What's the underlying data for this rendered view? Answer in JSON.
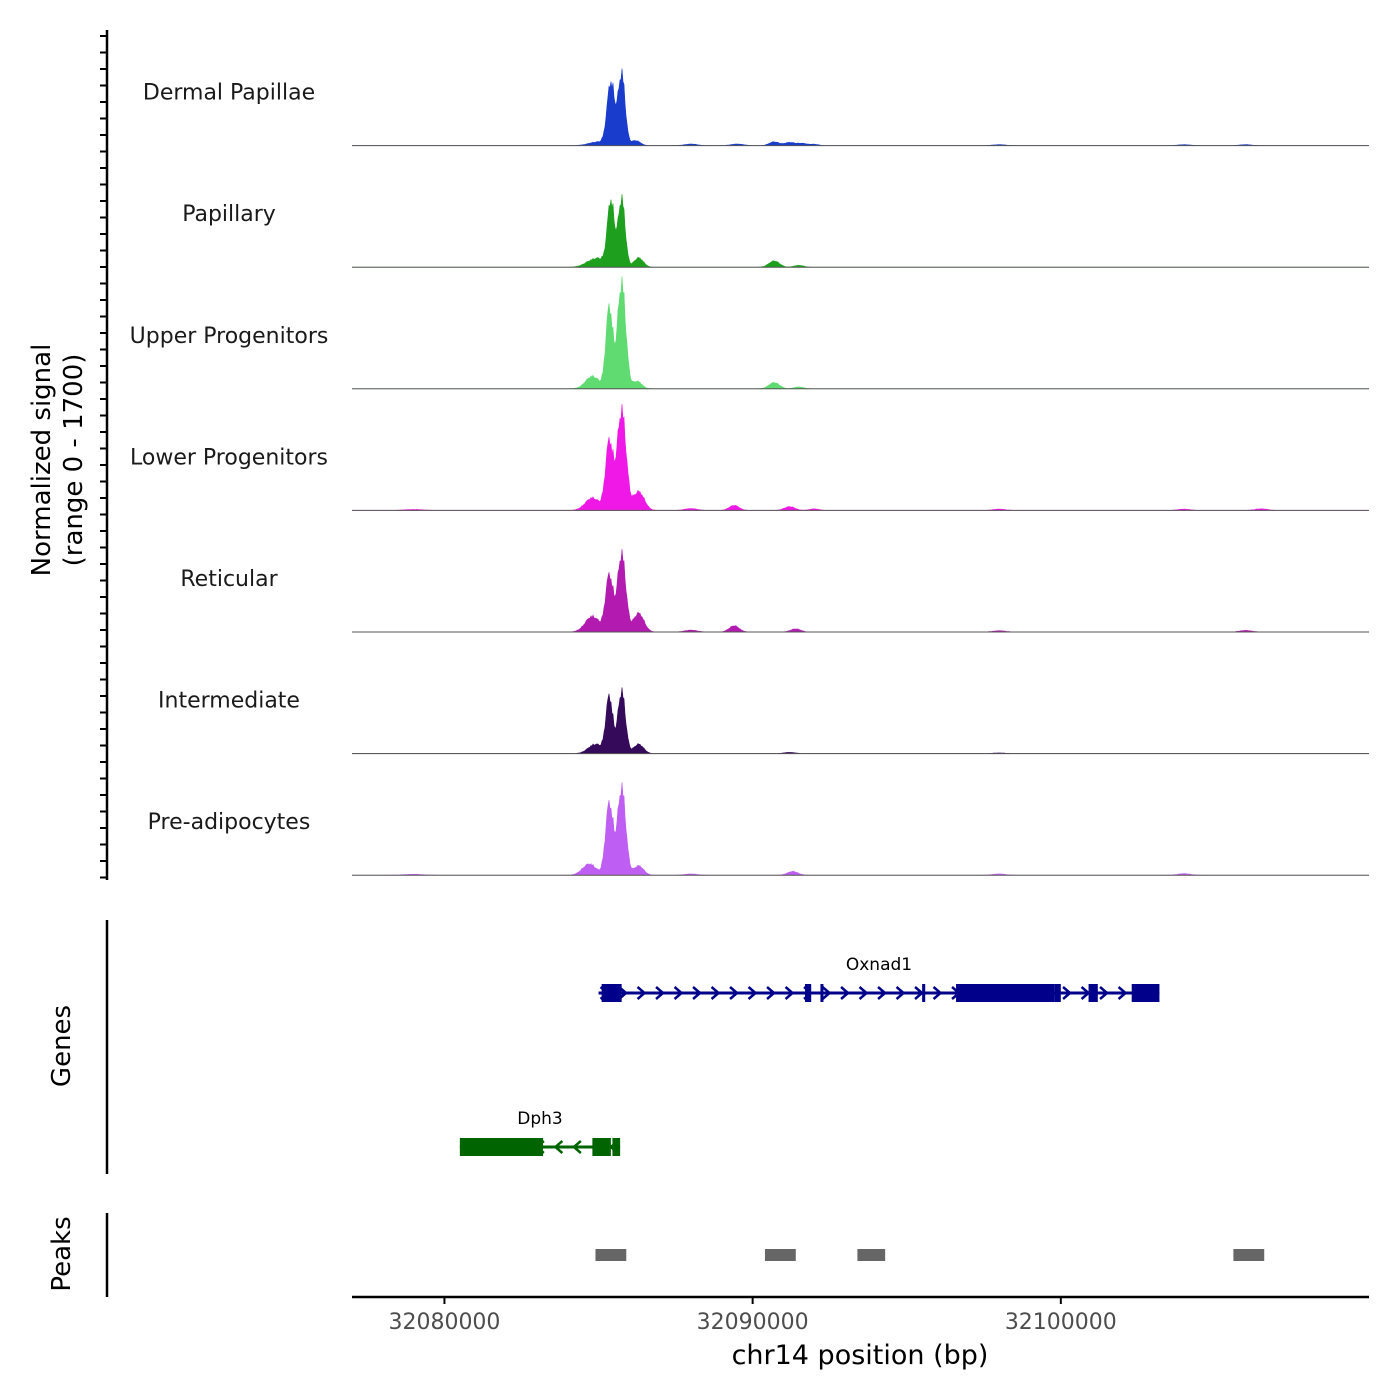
{
  "chart_data": {
    "type": "area",
    "title": "",
    "xlabel": "chr14 position (bp)",
    "ylabel": "Normalized signal",
    "ylabel_range": "(range 0 - 1700)",
    "xlim": [
      32077000,
      32110000
    ],
    "ylim": [
      0,
      1700
    ],
    "x_ticks": [
      32080000,
      32090000,
      32100000
    ],
    "x_tick_labels": [
      "32080000",
      "32090000",
      "32100000"
    ],
    "panel_labels": {
      "genes": "Genes",
      "peaks": "Peaks"
    },
    "series": [
      {
        "name": "Dermal Papillae",
        "color": "#1a3ccc",
        "peaks": [
          [
            32085000,
            60,
            300
          ],
          [
            32085400,
            1000,
            120
          ],
          [
            32085750,
            1150,
            110
          ],
          [
            32086200,
            80,
            150
          ],
          [
            32088000,
            25,
            200
          ],
          [
            32089500,
            25,
            200
          ],
          [
            32090700,
            60,
            160
          ],
          [
            32091200,
            50,
            160
          ],
          [
            32091600,
            35,
            160
          ],
          [
            32092000,
            20,
            150
          ],
          [
            32098000,
            15,
            200
          ],
          [
            32104000,
            15,
            200
          ],
          [
            32106000,
            15,
            200
          ]
        ]
      },
      {
        "name": "Papillary",
        "color": "#1ea01e",
        "peaks": [
          [
            32084800,
            100,
            250
          ],
          [
            32085400,
            1050,
            110
          ],
          [
            32085750,
            1100,
            110
          ],
          [
            32086300,
            150,
            150
          ],
          [
            32090700,
            100,
            170
          ],
          [
            32091500,
            30,
            150
          ],
          [
            32085100,
            80,
            200
          ]
        ]
      },
      {
        "name": "Upper Progenitors",
        "color": "#5fdb72",
        "peaks": [
          [
            32084800,
            200,
            220
          ],
          [
            32085350,
            1300,
            110
          ],
          [
            32085750,
            1700,
            130
          ],
          [
            32086250,
            120,
            150
          ],
          [
            32090700,
            100,
            170
          ],
          [
            32091500,
            30,
            150
          ]
        ]
      },
      {
        "name": "Lower Progenitors",
        "color": "#f018e6",
        "peaks": [
          [
            32084800,
            200,
            230
          ],
          [
            32085350,
            1100,
            120
          ],
          [
            32085750,
            1600,
            140
          ],
          [
            32086300,
            300,
            180
          ],
          [
            32088000,
            30,
            200
          ],
          [
            32089400,
            80,
            160
          ],
          [
            32091200,
            60,
            170
          ],
          [
            32092000,
            25,
            150
          ],
          [
            32098000,
            20,
            200
          ],
          [
            32104000,
            20,
            200
          ],
          [
            32106500,
            25,
            200
          ],
          [
            32079000,
            15,
            300
          ]
        ]
      },
      {
        "name": "Reticular",
        "color": "#b21ab0",
        "peaks": [
          [
            32084800,
            250,
            230
          ],
          [
            32085350,
            900,
            120
          ],
          [
            32085750,
            1250,
            130
          ],
          [
            32086300,
            300,
            170
          ],
          [
            32088000,
            30,
            200
          ],
          [
            32089400,
            100,
            160
          ],
          [
            32091400,
            50,
            160
          ],
          [
            32098000,
            20,
            200
          ],
          [
            32106000,
            25,
            200
          ]
        ]
      },
      {
        "name": "Intermediate",
        "color": "#350a5a",
        "peaks": [
          [
            32084900,
            150,
            230
          ],
          [
            32085350,
            900,
            110
          ],
          [
            32085750,
            1000,
            120
          ],
          [
            32086300,
            150,
            160
          ],
          [
            32091200,
            20,
            180
          ],
          [
            32098000,
            10,
            200
          ]
        ]
      },
      {
        "name": "Pre-adipocytes",
        "color": "#be5ef2",
        "peaks": [
          [
            32084700,
            180,
            220
          ],
          [
            32085350,
            1150,
            120
          ],
          [
            32085750,
            1400,
            130
          ],
          [
            32086300,
            150,
            160
          ],
          [
            32088000,
            20,
            200
          ],
          [
            32091300,
            60,
            170
          ],
          [
            32098000,
            20,
            200
          ],
          [
            32104000,
            25,
            200
          ],
          [
            32079000,
            15,
            300
          ]
        ]
      }
    ],
    "genes": [
      {
        "name": "Oxnad1",
        "color": "#00008b",
        "strand": "+",
        "start": 32085000,
        "end": 32103200,
        "exons": [
          [
            32085100,
            32085750
          ],
          [
            32091700,
            32091900
          ],
          [
            32092200,
            32092260
          ],
          [
            32095500,
            32095600
          ],
          [
            32096600,
            32099800
          ],
          [
            32099800,
            32100000
          ],
          [
            32100900,
            32101200
          ],
          [
            32102300,
            32103200
          ]
        ]
      },
      {
        "name": "Dph3",
        "color": "#006400",
        "strand": "-",
        "start": 32080500,
        "end": 32085700,
        "exons": [
          [
            32080500,
            32083200
          ],
          [
            32084800,
            32085400
          ],
          [
            32085450,
            32085700
          ]
        ]
      }
    ],
    "peaks_regions": [
      [
        32084900,
        32085900
      ],
      [
        32090400,
        32091400
      ],
      [
        32093400,
        32094300
      ],
      [
        32105600,
        32106600
      ]
    ]
  }
}
